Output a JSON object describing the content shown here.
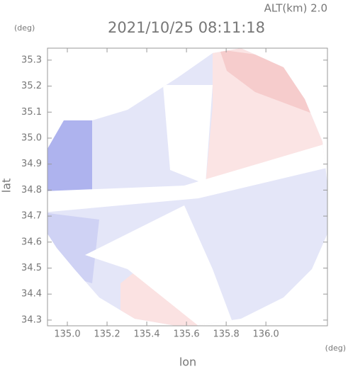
{
  "chart_data": {
    "type": "heatmap",
    "title": "2021/10/25 08:11:18",
    "subtitle": "ALT(km) 2.0",
    "y_unit": "(deg)",
    "x_unit": "(deg)",
    "xlabel": "lon",
    "ylabel": "lat",
    "xlim": [
      134.9,
      136.31
    ],
    "ylim": [
      34.278,
      35.346
    ],
    "xticks": [
      {
        "value": 135.0,
        "label": "135.0"
      },
      135.2,
      135.4,
      135.6,
      135.8,
      {
        "value": 136.0,
        "label": "136.0"
      }
    ],
    "yticks": [
      34.3,
      34.4,
      34.5,
      34.6,
      34.7,
      34.8,
      34.9,
      {
        "value": 35.0,
        "label": "35.0"
      },
      35.1,
      35.2,
      35.3
    ]
  }
}
